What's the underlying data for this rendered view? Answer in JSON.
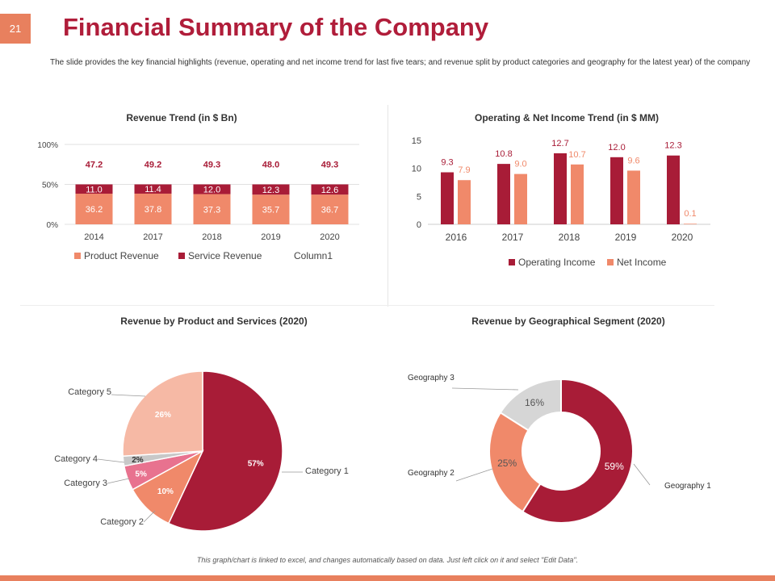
{
  "slide_number": "21",
  "title": "Financial Summary of the Company",
  "subtitle": "The slide provides the key financial highlights (revenue, operating and net income trend for last five tears; and revenue split by product categories and geography for the latest year) of the company",
  "footer_note": "This graph/chart is linked to excel, and changes automatically based on data. Just left click on it and select \"Edit Data\".",
  "colors": {
    "accent": "#b01d3a",
    "orange": "#f0896a",
    "peach": "#f6b9a5",
    "pink": "#e8728f",
    "grey": "#d6d6d6",
    "dark_red": "#a81c37"
  },
  "chart_data": [
    {
      "type": "bar",
      "stacked": true,
      "title": "Revenue Trend (in $ Bn)",
      "categories": [
        "2014",
        "2017",
        "2018",
        "2019",
        "2020"
      ],
      "y_ticks": [
        "0%",
        "50%",
        "100%"
      ],
      "ylim": [
        0,
        100
      ],
      "series": [
        {
          "name": "Product Revenue",
          "values": [
            36.2,
            37.8,
            37.3,
            35.7,
            36.7
          ],
          "color": "#f0896a"
        },
        {
          "name": "Service Revenue",
          "values": [
            11.0,
            11.4,
            12.0,
            12.3,
            12.6
          ],
          "color": "#a81c37"
        },
        {
          "name": "Column1",
          "values": [
            47.2,
            49.2,
            49.3,
            48.0,
            49.3
          ],
          "color": "#ffffff"
        }
      ],
      "legend": "bottom"
    },
    {
      "type": "bar",
      "title": "Operating & Net Income Trend (in $ MM)",
      "categories": [
        "2016",
        "2017",
        "2018",
        "2019",
        "2020"
      ],
      "ylim": [
        0,
        15
      ],
      "y_ticks": [
        0,
        5,
        10,
        15
      ],
      "series": [
        {
          "name": "Operating Income",
          "values": [
            9.3,
            10.8,
            12.7,
            12.0,
            12.3
          ],
          "color": "#a81c37"
        },
        {
          "name": "Net Income",
          "values": [
            7.9,
            9.0,
            10.7,
            9.6,
            0.1
          ],
          "color": "#f0896a"
        }
      ],
      "legend": "bottom"
    },
    {
      "type": "pie",
      "title": "Revenue by Product and Services (2020)",
      "slices": [
        {
          "label": "Category 1",
          "value": 57,
          "text": "57%",
          "color": "#a81c37"
        },
        {
          "label": "Category 2",
          "value": 10,
          "text": "10%",
          "color": "#f0896a"
        },
        {
          "label": "Category 3",
          "value": 5,
          "text": "5%",
          "color": "#e8728f"
        },
        {
          "label": "Category 4",
          "value": 2,
          "text": "2%",
          "color": "#c8c8c8"
        },
        {
          "label": "Category 5",
          "value": 26,
          "text": "26%",
          "color": "#f6b9a5"
        }
      ]
    },
    {
      "type": "pie",
      "donut": true,
      "title": "Revenue by Geographical Segment (2020)",
      "slices": [
        {
          "label": "Geography 1",
          "value": 59,
          "text": "59%",
          "color": "#a81c37"
        },
        {
          "label": "Geography 2",
          "value": 25,
          "text": "25%",
          "color": "#f0896a"
        },
        {
          "label": "Geography 3",
          "value": 16,
          "text": "16%",
          "color": "#d6d6d6"
        }
      ]
    }
  ]
}
